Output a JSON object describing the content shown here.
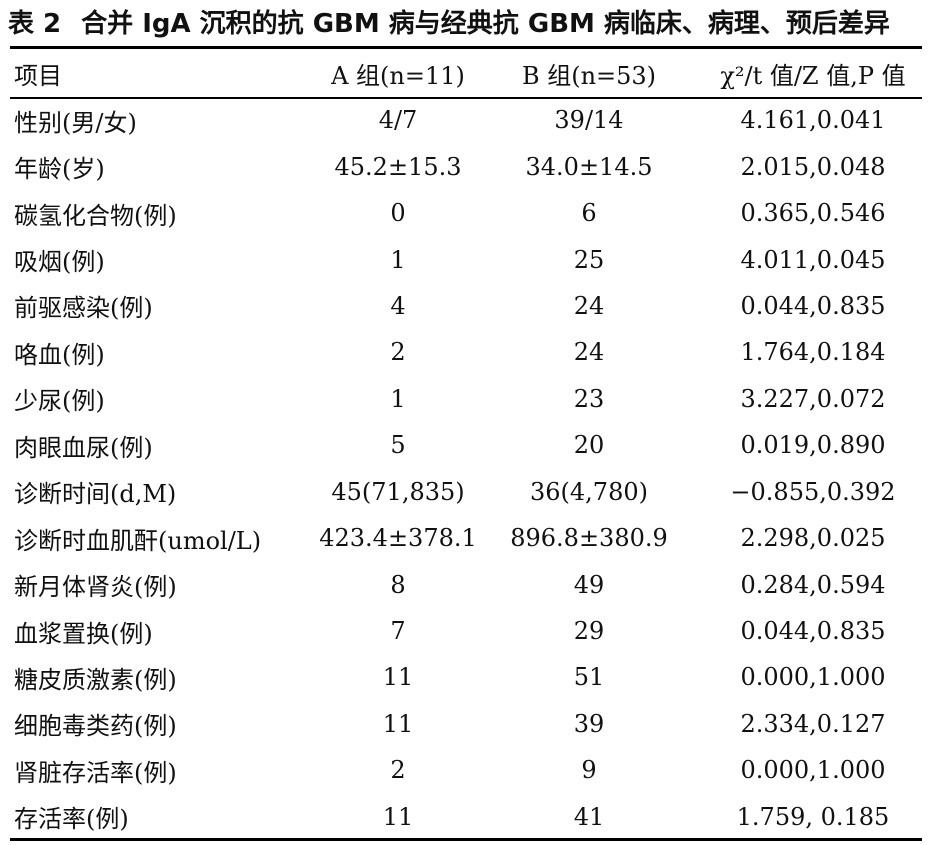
{
  "caption": {
    "number": "表 2",
    "title": "合并 IgA 沉积的抗 GBM 病与经典抗 GBM 病临床、病理、预后差异"
  },
  "table": {
    "headers": [
      "项目",
      "A 组(n=11)",
      "B 组(n=53)",
      "χ²/t 值/Z 值,P 值"
    ],
    "rows": [
      [
        "性别(男/女)",
        "4/7",
        "39/14",
        "4.161,0.041"
      ],
      [
        "年龄(岁)",
        "45.2±15.3",
        "34.0±14.5",
        "2.015,0.048"
      ],
      [
        "碳氢化合物(例)",
        "0",
        "6",
        "0.365,0.546"
      ],
      [
        "吸烟(例)",
        "1",
        "25",
        "4.011,0.045"
      ],
      [
        "前驱感染(例)",
        "4",
        "24",
        "0.044,0.835"
      ],
      [
        "咯血(例)",
        "2",
        "24",
        "1.764,0.184"
      ],
      [
        "少尿(例)",
        "1",
        "23",
        "3.227,0.072"
      ],
      [
        "肉眼血尿(例)",
        "5",
        "20",
        "0.019,0.890"
      ],
      [
        "诊断时间(d,M)",
        "45(71,835)",
        "36(4,780)",
        "−0.855,0.392"
      ],
      [
        "诊断时血肌酐(umol/L)",
        "423.4±378.1",
        "896.8±380.9",
        "2.298,0.025"
      ],
      [
        "新月体肾炎(例)",
        "8",
        "49",
        "0.284,0.594"
      ],
      [
        "血浆置换(例)",
        "7",
        "29",
        "0.044,0.835"
      ],
      [
        "糖皮质激素(例)",
        "11",
        "51",
        "0.000,1.000"
      ],
      [
        "细胞毒类药(例)",
        "11",
        "39",
        "2.334,0.127"
      ],
      [
        "肾脏存活率(例)",
        "2",
        "9",
        "0.000,1.000"
      ],
      [
        "存活率(例)",
        "11",
        "41",
        "1.759, 0.185"
      ]
    ]
  }
}
